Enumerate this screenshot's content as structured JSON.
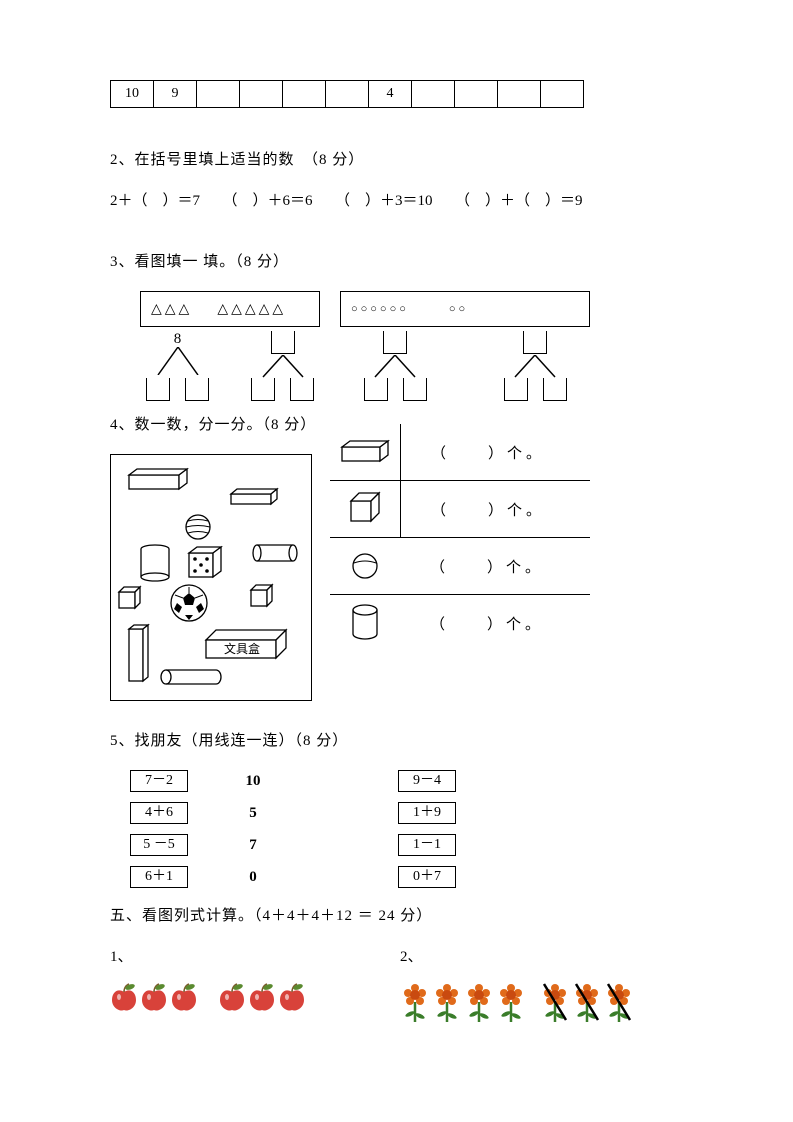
{
  "q1": {
    "cells": [
      "10",
      "9",
      "",
      "",
      "",
      "",
      "4",
      "",
      "",
      "",
      ""
    ]
  },
  "q2": {
    "title": "2、在括号里填上适当的数　（8 分）",
    "equations": "2＋（　）＝7　　（　）＋6＝6　　（　）＋3＝10　　（　）＋（　）＝9"
  },
  "q3": {
    "title": "3、看图填一 填。（8 分）",
    "box1_left": "△△△",
    "box1_right": "△△△△△",
    "box2_left": "○○○○○○",
    "box2_right": "○○",
    "top_value": "8"
  },
  "q4": {
    "title": "4、数一数，分一分。（8 分）",
    "pencil_box": "文具盒",
    "count_label": "（　　）个。"
  },
  "q5": {
    "title": "5、找朋友（用线连一连）（8 分）",
    "rows": [
      {
        "left": "7－2",
        "mid": "10",
        "right": "9－4"
      },
      {
        "left": "4＋6",
        "mid": "5",
        "right": "1＋9"
      },
      {
        "left": "5 －5",
        "mid": "7",
        "right": "1－1"
      },
      {
        "left": "6＋1",
        "mid": "0",
        "right": "0＋7"
      }
    ]
  },
  "section5": {
    "title": "五、看图列式计算。（4＋4＋4＋12 ＝ 24 分）",
    "sub1": "1、",
    "sub2": "2、"
  },
  "colors": {
    "apple_red": "#d8423a",
    "apple_leaf": "#5a8a2f",
    "apple_stem": "#7a5a2a",
    "flower_petal": "#e06a1a",
    "flower_center": "#c94a10",
    "flower_stem": "#3a7d2a",
    "border": "#000000"
  }
}
